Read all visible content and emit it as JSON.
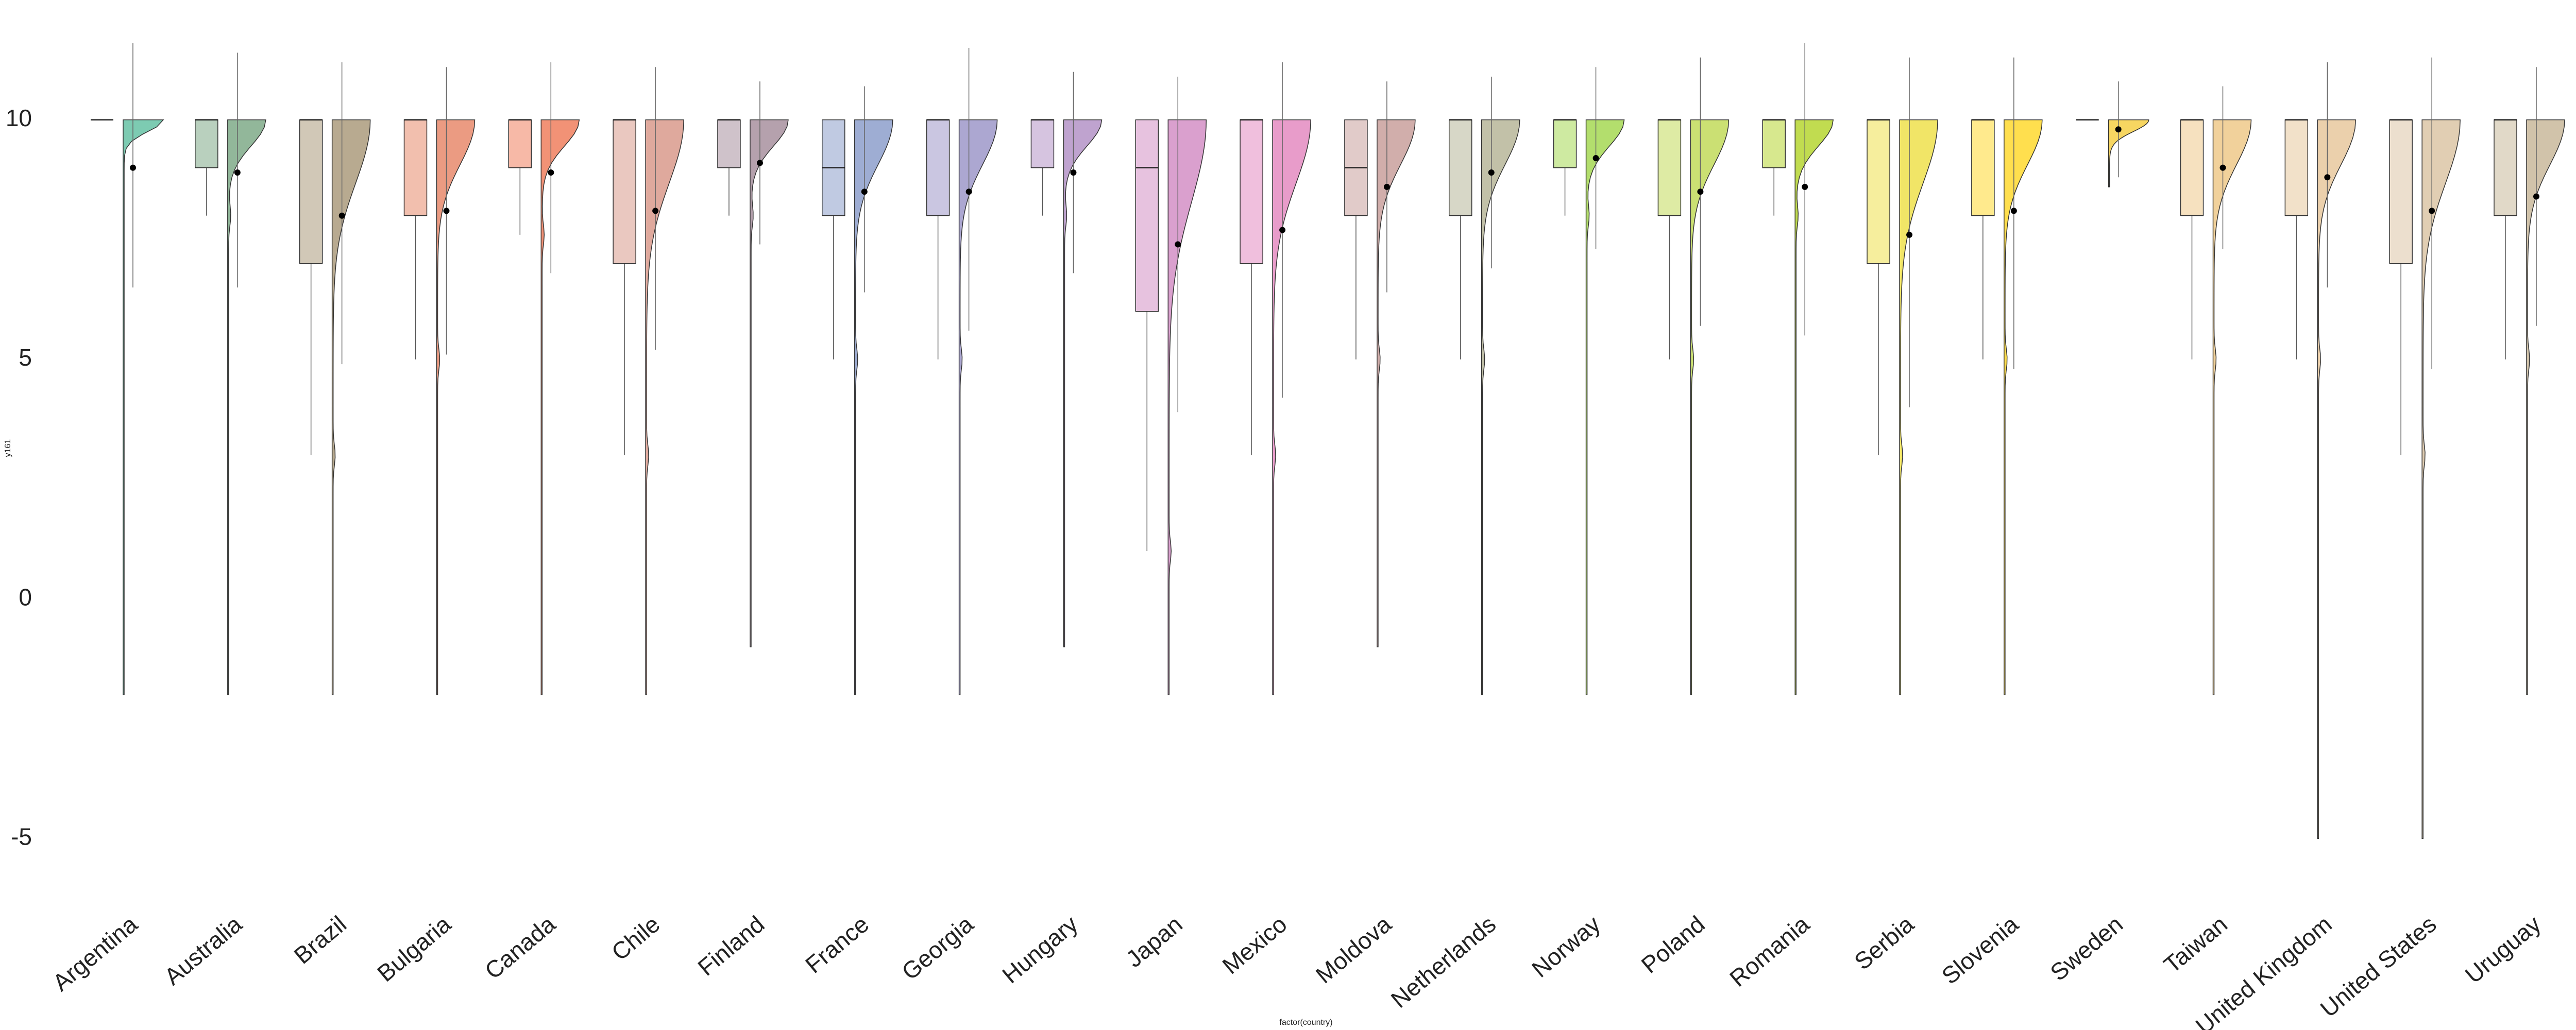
{
  "chart_data": {
    "type": "raincloud",
    "x_label": "factor(country)",
    "y_label": "y161",
    "ylim": [
      -6.2,
      12.5
    ],
    "yticks": [
      -5,
      0,
      5,
      10
    ],
    "series": [
      {
        "name": "Argentina",
        "color": "#66c2a5",
        "q1": 10,
        "median": 10,
        "q3": 10,
        "whisker_low": 10,
        "whisker_high": 10,
        "min": -2,
        "max": 10,
        "mean": 9.0,
        "sd_low": 6.5,
        "sd_high": 11.6
      },
      {
        "name": "Australia",
        "color": "#7faa88",
        "q1": 9,
        "median": 10,
        "q3": 10,
        "whisker_low": 8,
        "whisker_high": 10,
        "min": -2,
        "max": 10,
        "mean": 8.9,
        "sd_low": 6.5,
        "sd_high": 11.4
      },
      {
        "name": "Brazil",
        "color": "#ab9b7c",
        "q1": 7,
        "median": 10,
        "q3": 10,
        "whisker_low": 3,
        "whisker_high": 10,
        "min": -2,
        "max": 10,
        "mean": 8.0,
        "sd_low": 4.9,
        "sd_high": 11.2
      },
      {
        "name": "Bulgaria",
        "color": "#e88a6c",
        "q1": 8,
        "median": 10,
        "q3": 10,
        "whisker_low": 5,
        "whisker_high": 10,
        "min": -2,
        "max": 10,
        "mean": 8.1,
        "sd_low": 5.1,
        "sd_high": 11.1
      },
      {
        "name": "Canada",
        "color": "#f07f5e",
        "q1": 9,
        "median": 10,
        "q3": 10,
        "whisker_low": 7.6,
        "whisker_high": 10,
        "min": -2,
        "max": 10,
        "mean": 8.9,
        "sd_low": 6.8,
        "sd_high": 11.2
      },
      {
        "name": "Chile",
        "color": "#d99a8c",
        "q1": 7,
        "median": 10,
        "q3": 10,
        "whisker_low": 3,
        "whisker_high": 10,
        "min": -2,
        "max": 10,
        "mean": 8.1,
        "sd_low": 5.2,
        "sd_high": 11.1
      },
      {
        "name": "Finland",
        "color": "#a8909f",
        "q1": 9,
        "median": 10,
        "q3": 10,
        "whisker_low": 8,
        "whisker_high": 10,
        "min": -1,
        "max": 10,
        "mean": 9.1,
        "sd_low": 7.4,
        "sd_high": 10.8
      },
      {
        "name": "France",
        "color": "#8d9fcb",
        "q1": 8,
        "median": 9,
        "q3": 10,
        "whisker_low": 5,
        "whisker_high": 10,
        "min": -2,
        "max": 10,
        "mean": 8.5,
        "sd_low": 6.4,
        "sd_high": 10.7
      },
      {
        "name": "Georgia",
        "color": "#9e98c9",
        "q1": 8,
        "median": 10,
        "q3": 10,
        "whisker_low": 5,
        "whisker_high": 10,
        "min": -2,
        "max": 10,
        "mean": 8.5,
        "sd_low": 5.6,
        "sd_high": 11.5
      },
      {
        "name": "Hungary",
        "color": "#b493c7",
        "q1": 9,
        "median": 10,
        "q3": 10,
        "whisker_low": 8,
        "whisker_high": 10,
        "min": -1,
        "max": 10,
        "mean": 8.9,
        "sd_low": 6.8,
        "sd_high": 11.0
      },
      {
        "name": "Japan",
        "color": "#d48fc5",
        "q1": 6,
        "median": 9,
        "q3": 10,
        "whisker_low": 1,
        "whisker_high": 10,
        "min": -2,
        "max": 10,
        "mean": 7.4,
        "sd_low": 3.9,
        "sd_high": 10.9
      },
      {
        "name": "Mexico",
        "color": "#e48bc1",
        "q1": 7,
        "median": 10,
        "q3": 10,
        "whisker_low": 3,
        "whisker_high": 10,
        "min": -2,
        "max": 10,
        "mean": 7.7,
        "sd_low": 4.2,
        "sd_high": 11.2
      },
      {
        "name": "Moldova",
        "color": "#c9a09c",
        "q1": 8,
        "median": 9,
        "q3": 10,
        "whisker_low": 5,
        "whisker_high": 10,
        "min": -1,
        "max": 10,
        "mean": 8.6,
        "sd_low": 6.4,
        "sd_high": 10.8
      },
      {
        "name": "Netherlands",
        "color": "#b7b699",
        "q1": 8,
        "median": 10,
        "q3": 10,
        "whisker_low": 5,
        "whisker_high": 10,
        "min": -2,
        "max": 10,
        "mean": 8.9,
        "sd_low": 6.9,
        "sd_high": 10.9
      },
      {
        "name": "Norway",
        "color": "#a6d854",
        "q1": 9,
        "median": 10,
        "q3": 10,
        "whisker_low": 8,
        "whisker_high": 10,
        "min": -2,
        "max": 10,
        "mean": 9.2,
        "sd_low": 7.3,
        "sd_high": 11.1
      },
      {
        "name": "Poland",
        "color": "#c2da5a",
        "q1": 8,
        "median": 10,
        "q3": 10,
        "whisker_low": 5,
        "whisker_high": 10,
        "min": -2,
        "max": 10,
        "mean": 8.5,
        "sd_low": 5.7,
        "sd_high": 11.3
      },
      {
        "name": "Romania",
        "color": "#b6d631",
        "q1": 9,
        "median": 10,
        "q3": 10,
        "whisker_low": 8,
        "whisker_high": 10,
        "min": -2,
        "max": 10,
        "mean": 8.6,
        "sd_low": 5.5,
        "sd_high": 11.6
      },
      {
        "name": "Serbia",
        "color": "#efe04c",
        "q1": 7,
        "median": 10,
        "q3": 10,
        "whisker_low": 3,
        "whisker_high": 10,
        "min": -2,
        "max": 10,
        "mean": 7.6,
        "sd_low": 4.0,
        "sd_high": 11.3
      },
      {
        "name": "Slovenia",
        "color": "#ffd92f",
        "q1": 8,
        "median": 10,
        "q3": 10,
        "whisker_low": 5,
        "whisker_high": 10,
        "min": -2,
        "max": 10,
        "mean": 8.1,
        "sd_low": 4.8,
        "sd_high": 11.3
      },
      {
        "name": "Sweden",
        "color": "#f6cf45",
        "q1": 10,
        "median": 10,
        "q3": 10,
        "whisker_low": 10,
        "whisker_high": 10,
        "min": 8.6,
        "max": 10,
        "mean": 9.8,
        "sd_low": 8.8,
        "sd_high": 10.8
      },
      {
        "name": "Taiwan",
        "color": "#efc98a",
        "q1": 8,
        "median": 10,
        "q3": 10,
        "whisker_low": 5,
        "whisker_high": 10,
        "min": -2,
        "max": 10,
        "mean": 9.0,
        "sd_low": 7.3,
        "sd_high": 10.7
      },
      {
        "name": "United Kingdom",
        "color": "#e8c89d",
        "q1": 8,
        "median": 10,
        "q3": 10,
        "whisker_low": 5,
        "whisker_high": 10,
        "min": -5,
        "max": 10,
        "mean": 8.8,
        "sd_low": 6.5,
        "sd_high": 11.2
      },
      {
        "name": "United States",
        "color": "#dcc5a6",
        "q1": 7,
        "median": 10,
        "q3": 10,
        "whisker_low": 3,
        "whisker_high": 10,
        "min": -5,
        "max": 10,
        "mean": 8.1,
        "sd_low": 4.8,
        "sd_high": 11.3
      },
      {
        "name": "Uruguay",
        "color": "#c9b99b",
        "q1": 8,
        "median": 10,
        "q3": 10,
        "whisker_low": 5,
        "whisker_high": 10,
        "min": -2,
        "max": 10,
        "mean": 8.4,
        "sd_low": 5.7,
        "sd_high": 11.1
      }
    ]
  }
}
